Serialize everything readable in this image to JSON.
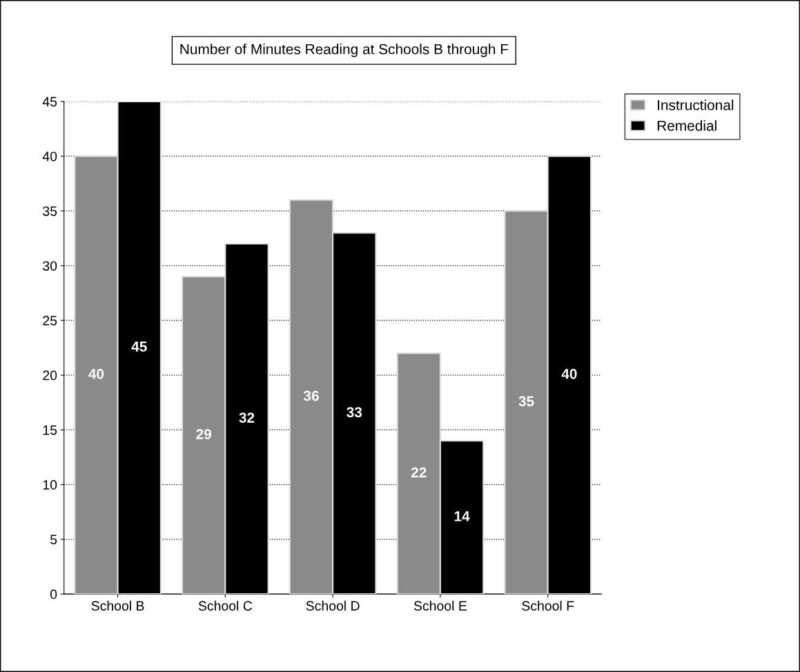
{
  "chart_data": {
    "type": "bar",
    "title": "Number of Minutes Reading at Schools B through F",
    "categories": [
      "School B",
      "School C",
      "School D",
      "School E",
      "School F"
    ],
    "series": [
      {
        "name": "Instructional",
        "color": "#8a8a8a",
        "values": [
          40,
          29,
          36,
          22,
          35
        ]
      },
      {
        "name": "Remedial",
        "color": "#000000",
        "values": [
          45,
          32,
          33,
          14,
          40
        ]
      }
    ],
    "ylim": [
      0,
      45
    ],
    "yticks": [
      0,
      5,
      10,
      15,
      20,
      25,
      30,
      35,
      40,
      45
    ],
    "grid": "y",
    "legend": "right",
    "data_labels": true
  }
}
